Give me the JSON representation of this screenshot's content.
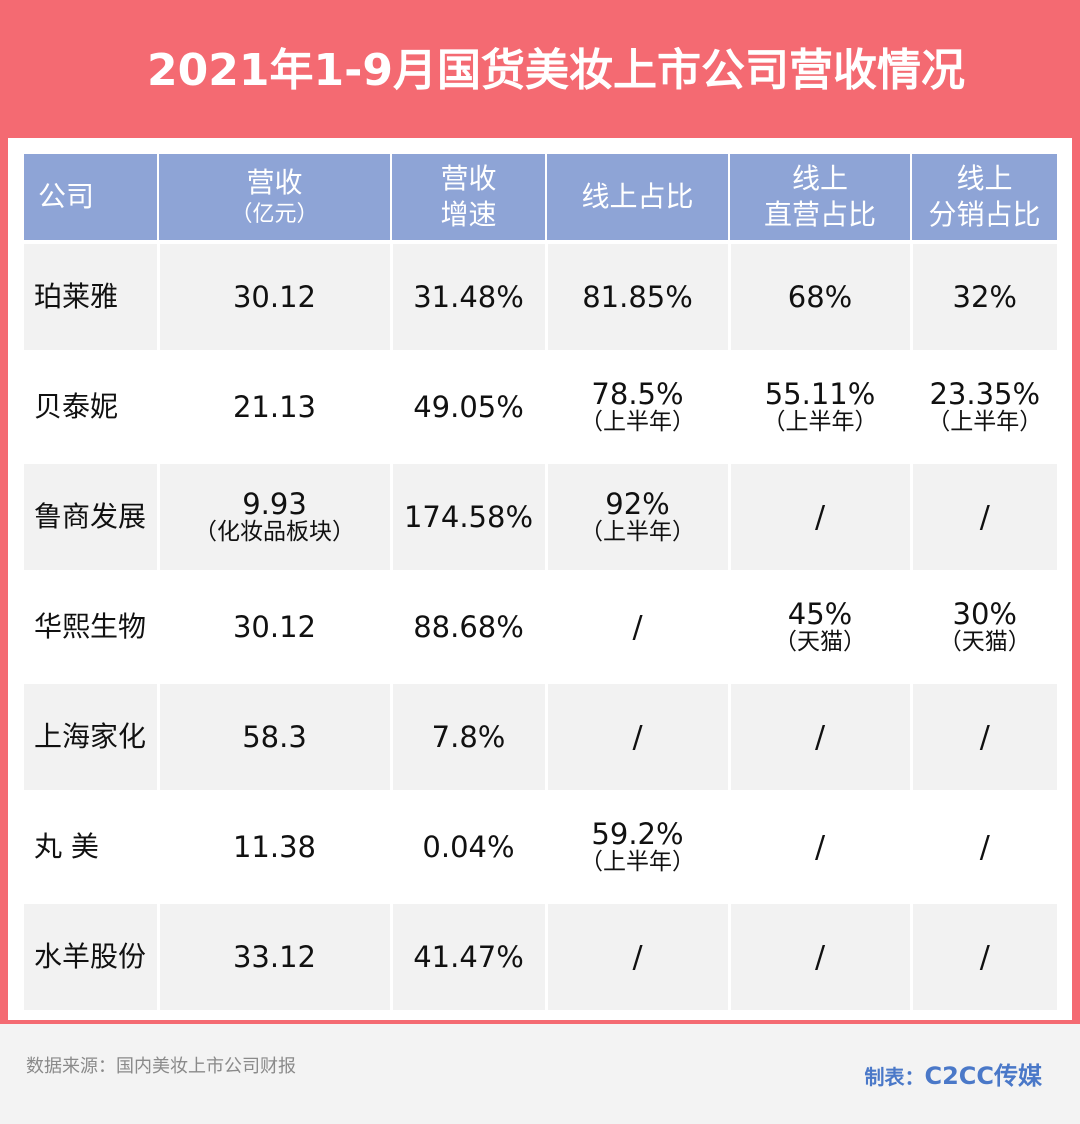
{
  "title": "2021年1-9月国货美妆上市公司营收情况",
  "headers": {
    "company": "公司",
    "revenue": "营收",
    "revenue_unit": "（亿元）",
    "growth_1": "营收",
    "growth_2": "增速",
    "online": "线上占比",
    "direct_1": "线上",
    "direct_2": "直营占比",
    "dist_1": "线上",
    "dist_2": "分销占比"
  },
  "rows": [
    {
      "company": "珀莱雅",
      "revenue": "30.12",
      "revenue_note": "",
      "growth": "31.48%",
      "online": "81.85%",
      "online_note": "",
      "direct": "68%",
      "direct_note": "",
      "dist": "32%",
      "dist_note": ""
    },
    {
      "company": "贝泰妮",
      "revenue": "21.13",
      "revenue_note": "",
      "growth": "49.05%",
      "online": "78.5%",
      "online_note": "（上半年）",
      "direct": "55.11%",
      "direct_note": "（上半年）",
      "dist": "23.35%",
      "dist_note": "（上半年）"
    },
    {
      "company": "鲁商发展",
      "revenue": "9.93",
      "revenue_note": "（化妆品板块）",
      "growth": "174.58%",
      "online": "92%",
      "online_note": "（上半年）",
      "direct": "/",
      "direct_note": "",
      "dist": "/",
      "dist_note": ""
    },
    {
      "company": "华熙生物",
      "revenue": "30.12",
      "revenue_note": "",
      "growth": "88.68%",
      "online": "/",
      "online_note": "",
      "direct": "45%",
      "direct_note": "（天猫）",
      "dist": "30%",
      "dist_note": "（天猫）"
    },
    {
      "company": "上海家化",
      "revenue": "58.3",
      "revenue_note": "",
      "growth": "7.8%",
      "online": "/",
      "online_note": "",
      "direct": "/",
      "direct_note": "",
      "dist": "/",
      "dist_note": ""
    },
    {
      "company": "丸 美",
      "revenue": "11.38",
      "revenue_note": "",
      "growth": "0.04%",
      "online": "59.2%",
      "online_note": "（上半年）",
      "direct": "/",
      "direct_note": "",
      "dist": "/",
      "dist_note": ""
    },
    {
      "company": "水羊股份",
      "revenue": "33.12",
      "revenue_note": "",
      "growth": "41.47%",
      "online": "/",
      "online_note": "",
      "direct": "/",
      "direct_note": "",
      "dist": "/",
      "dist_note": ""
    }
  ],
  "footer": {
    "source": "数据来源：国内美妆上市公司财报",
    "maker_label": "制表：",
    "maker_name": "C2CC传媒"
  },
  "colors": {
    "frame": "#f46a72",
    "header": "#8ea4d6",
    "maker": "#4a78c8"
  }
}
